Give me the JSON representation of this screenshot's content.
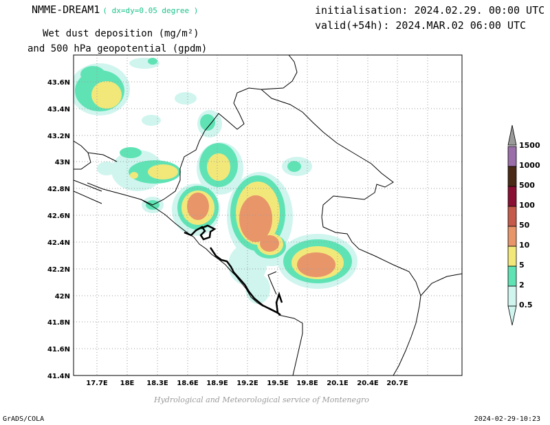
{
  "header": {
    "model": "NMME-DREAM1",
    "resolution": "( dx=dy=0.05 degree )",
    "title_line1": "Wet dust deposition (mg/m²)",
    "title_line2": "and 500 hPa geopotential (gpdm)",
    "initialisation": "initialisation: 2024.02.29. 00:00 UTC",
    "valid": "valid(+54h): 2024.MAR.02 06:00 UTC"
  },
  "map": {
    "lon_ticks": [
      "17.7E",
      "18E",
      "18.3E",
      "18.6E",
      "18.9E",
      "19.2E",
      "19.5E",
      "19.8E",
      "20.1E",
      "20.4E",
      "20.7E"
    ],
    "lat_ticks": [
      "43.6N",
      "43.4N",
      "43.2N",
      "43N",
      "42.8N",
      "42.6N",
      "42.4N",
      "42.2N",
      "42N",
      "41.8N",
      "41.6N",
      "41.4N"
    ],
    "grid": true
  },
  "colorbar": {
    "levels": [
      "0.5",
      "2",
      "5",
      "10",
      "50",
      "100",
      "500",
      "1000",
      "1500"
    ],
    "colors": [
      "#cff5ee",
      "#5fe3b5",
      "#f2e87a",
      "#e8956a",
      "#c65a4a",
      "#8a0f33",
      "#4a2a16",
      "#9a6ea8",
      "#9a9a9a"
    ]
  },
  "footer": {
    "credit": "Hydrological and Meteorological service of Montenegro",
    "software": "GrADS/COLA",
    "timestamp": "2024-02-29-10:23"
  }
}
